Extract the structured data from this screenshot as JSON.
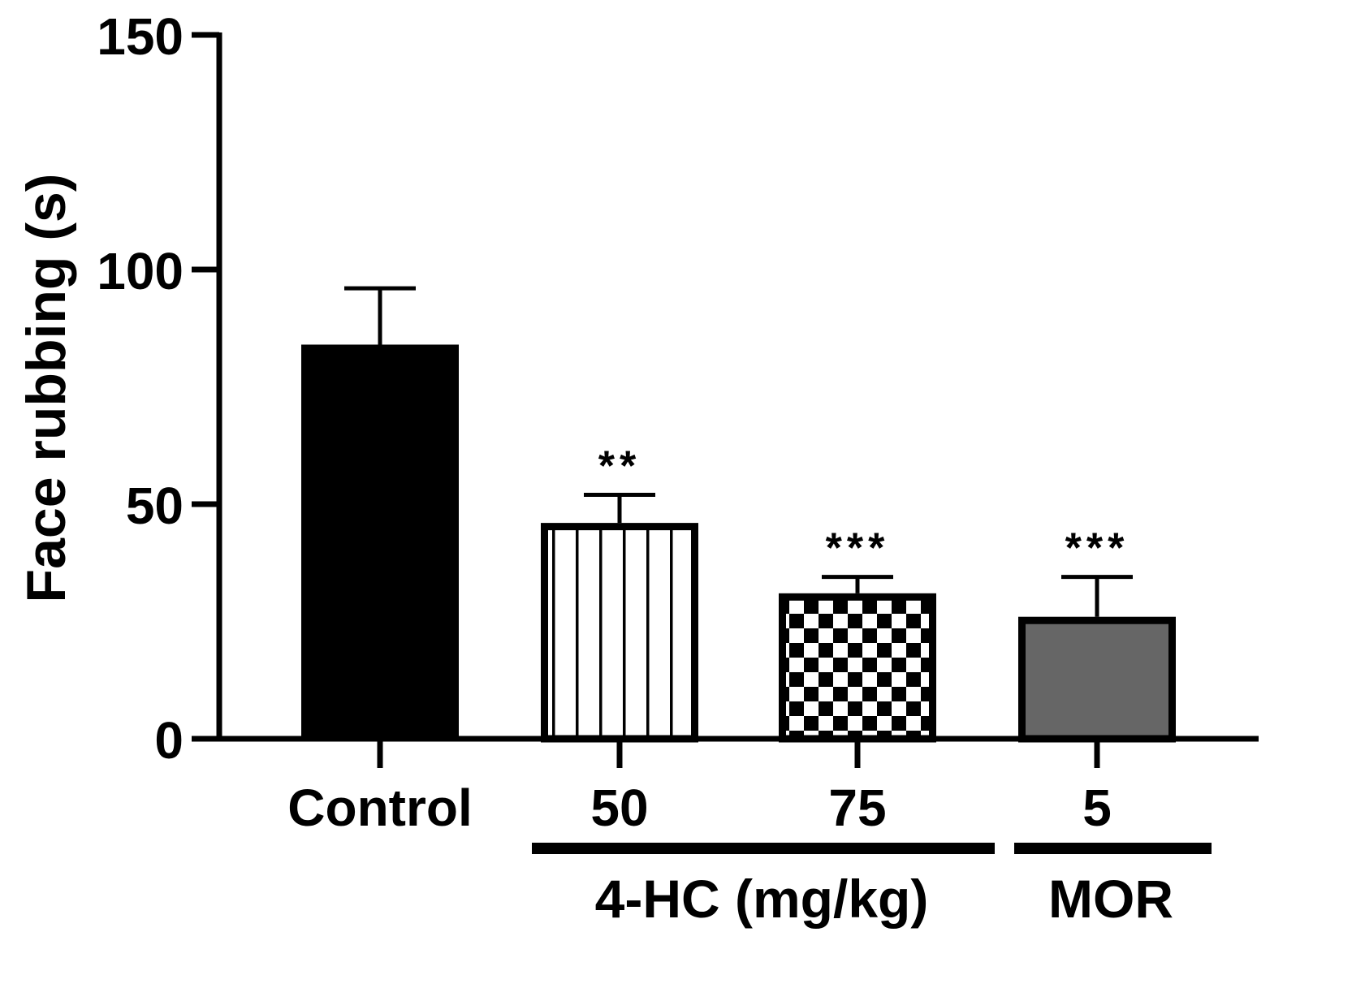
{
  "chart_data": {
    "type": "bar",
    "title": "",
    "ylabel": "Face rubbing (s)",
    "xlabel": "",
    "ylim": [
      0,
      150
    ],
    "yticks": [
      "0",
      "50",
      "100",
      "150"
    ],
    "categories": [
      "Control",
      "50",
      "75",
      "5"
    ],
    "values": [
      84,
      46,
      31,
      26
    ],
    "errors": [
      12,
      6,
      3.5,
      8.5
    ],
    "significance": [
      "",
      "**",
      "***",
      "***"
    ],
    "fills": [
      "solid-black",
      "vertical-stripes",
      "checkerboard",
      "solid-gray"
    ],
    "groups": [
      {
        "label": "4-HC (mg/kg)",
        "members": [
          "50",
          "75"
        ]
      },
      {
        "label": "MOR",
        "members": [
          "5"
        ]
      }
    ],
    "colors": {
      "bar_black": "#000000",
      "bar_gray": "#666666",
      "axis": "#000000"
    }
  }
}
